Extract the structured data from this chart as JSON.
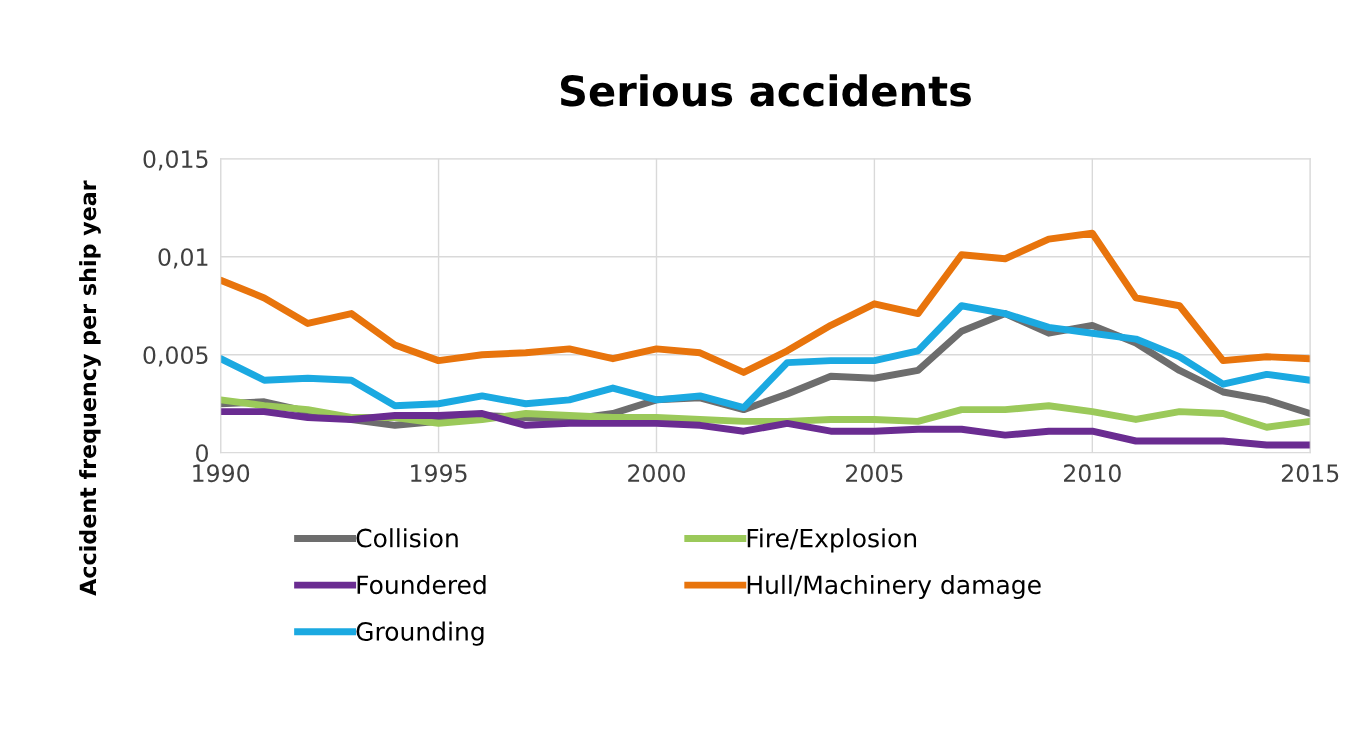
{
  "chart_data": {
    "type": "line",
    "title": "Serious accidents",
    "ylabel": "Accident frequency per ship year",
    "x": [
      1990,
      1991,
      1992,
      1993,
      1994,
      1995,
      1996,
      1997,
      1998,
      1999,
      2000,
      2001,
      2002,
      2003,
      2004,
      2005,
      2006,
      2007,
      2008,
      2009,
      2010,
      2011,
      2012,
      2013,
      2014,
      2015
    ],
    "series": [
      {
        "name": "Collision",
        "color": "#6d6d6d",
        "values": [
          0.0025,
          0.0026,
          0.0021,
          0.0017,
          0.0014,
          0.0016,
          0.0019,
          0.0018,
          0.0017,
          0.002,
          0.0027,
          0.0028,
          0.0022,
          0.003,
          0.0039,
          0.0038,
          0.0042,
          0.0062,
          0.0071,
          0.0061,
          0.0065,
          0.0056,
          0.0042,
          0.0031,
          0.0027,
          0.002
        ]
      },
      {
        "name": "Fire/Explosion",
        "color": "#9bc95a",
        "values": [
          0.0027,
          0.0024,
          0.0022,
          0.0018,
          0.0018,
          0.0015,
          0.0017,
          0.002,
          0.0019,
          0.0018,
          0.0018,
          0.0017,
          0.0016,
          0.0016,
          0.0017,
          0.0017,
          0.0016,
          0.0022,
          0.0022,
          0.0024,
          0.0021,
          0.0017,
          0.0021,
          0.002,
          0.0013,
          0.0016
        ]
      },
      {
        "name": "Foundered",
        "color": "#6a2c91",
        "values": [
          0.0021,
          0.0021,
          0.0018,
          0.0017,
          0.0019,
          0.0019,
          0.002,
          0.0014,
          0.0015,
          0.0015,
          0.0015,
          0.0014,
          0.0011,
          0.0015,
          0.0011,
          0.0011,
          0.0012,
          0.0012,
          0.0009,
          0.0011,
          0.0011,
          0.0006,
          0.0006,
          0.0006,
          0.0004,
          0.0004
        ]
      },
      {
        "name": "Hull/Machinery damage",
        "color": "#e8740c",
        "values": [
          0.0088,
          0.0079,
          0.0066,
          0.0071,
          0.0055,
          0.0047,
          0.005,
          0.0051,
          0.0053,
          0.0048,
          0.0053,
          0.0051,
          0.0041,
          0.0052,
          0.0065,
          0.0076,
          0.0071,
          0.0101,
          0.0099,
          0.0109,
          0.0112,
          0.0079,
          0.0075,
          0.0047,
          0.0049,
          0.0048
        ]
      },
      {
        "name": "Grounding",
        "color": "#1ba9e1",
        "values": [
          0.0048,
          0.0037,
          0.0038,
          0.0037,
          0.0024,
          0.0025,
          0.0029,
          0.0025,
          0.0027,
          0.0033,
          0.0027,
          0.0029,
          0.0023,
          0.0046,
          0.0047,
          0.0047,
          0.0052,
          0.0075,
          0.0071,
          0.0064,
          0.0061,
          0.0058,
          0.0049,
          0.0035,
          0.004,
          0.0037
        ]
      }
    ],
    "xlim": [
      1990,
      2015
    ],
    "xticks": [
      1990,
      1995,
      2000,
      2005,
      2010,
      2015
    ],
    "ylim": [
      0,
      0.015
    ],
    "yticks": [
      0,
      {
        "value": 0.005,
        "label": "0,005"
      },
      {
        "value": 0.01,
        "label": "0,01"
      },
      {
        "value": 0.015,
        "label": "0,015"
      }
    ],
    "grid": true,
    "legend": "bottom",
    "marker": "none",
    "line_style": "solid"
  }
}
